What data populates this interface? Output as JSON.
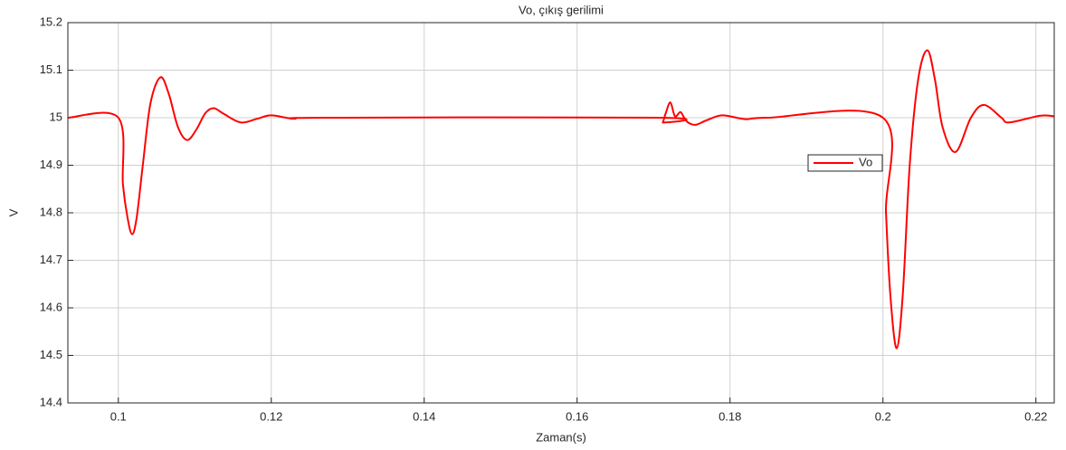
{
  "chart_data": {
    "type": "line",
    "title": "Vo, çıkış gerilimi",
    "xlabel": "Zaman(s)",
    "ylabel": "V",
    "x": [
      0.0934,
      0.1,
      0.1006,
      0.1012,
      0.1018,
      0.1024,
      0.1032,
      0.1042,
      0.1055,
      0.1066,
      0.1078,
      0.109,
      0.1102,
      0.1114,
      0.1125,
      0.1138,
      0.116,
      0.1182,
      0.12,
      0.123,
      0.127,
      0.171,
      0.1712,
      0.1716,
      0.1722,
      0.1728,
      0.1735,
      0.174,
      0.1745,
      0.1755,
      0.177,
      0.179,
      0.182,
      0.185,
      0.2,
      0.2004,
      0.201,
      0.2018,
      0.2026,
      0.2035,
      0.2046,
      0.2058,
      0.2068,
      0.2078,
      0.2095,
      0.2115,
      0.2132,
      0.2155,
      0.2165,
      0.2205,
      0.2224
    ],
    "series": [
      {
        "name": "Vo",
        "color": "#ff0000",
        "values": [
          15.0,
          15.0,
          14.86,
          14.79,
          14.755,
          14.79,
          14.9,
          15.03,
          15.085,
          15.05,
          14.98,
          14.953,
          14.975,
          15.01,
          15.02,
          15.008,
          14.99,
          14.998,
          15.005,
          14.998,
          15.0,
          15.0,
          14.99,
          15.01,
          15.032,
          15.003,
          15.012,
          15.0,
          14.99,
          14.985,
          14.995,
          15.005,
          14.997,
          15.0,
          15.0,
          14.8,
          14.62,
          14.515,
          14.63,
          14.9,
          15.08,
          15.142,
          15.08,
          14.98,
          14.928,
          15.0,
          15.027,
          15.0,
          14.99,
          15.004,
          15.003
        ]
      }
    ],
    "xlim": [
      0.0934,
      0.2224
    ],
    "xticks": [
      0.1,
      0.12,
      0.14,
      0.16,
      0.18,
      0.2,
      0.22
    ],
    "ylim": [
      14.4,
      15.2
    ],
    "yticks": [
      14.4,
      14.5,
      14.6,
      14.7,
      14.8,
      14.9,
      15,
      15.1,
      15.2
    ],
    "grid": true,
    "legend": "east"
  }
}
